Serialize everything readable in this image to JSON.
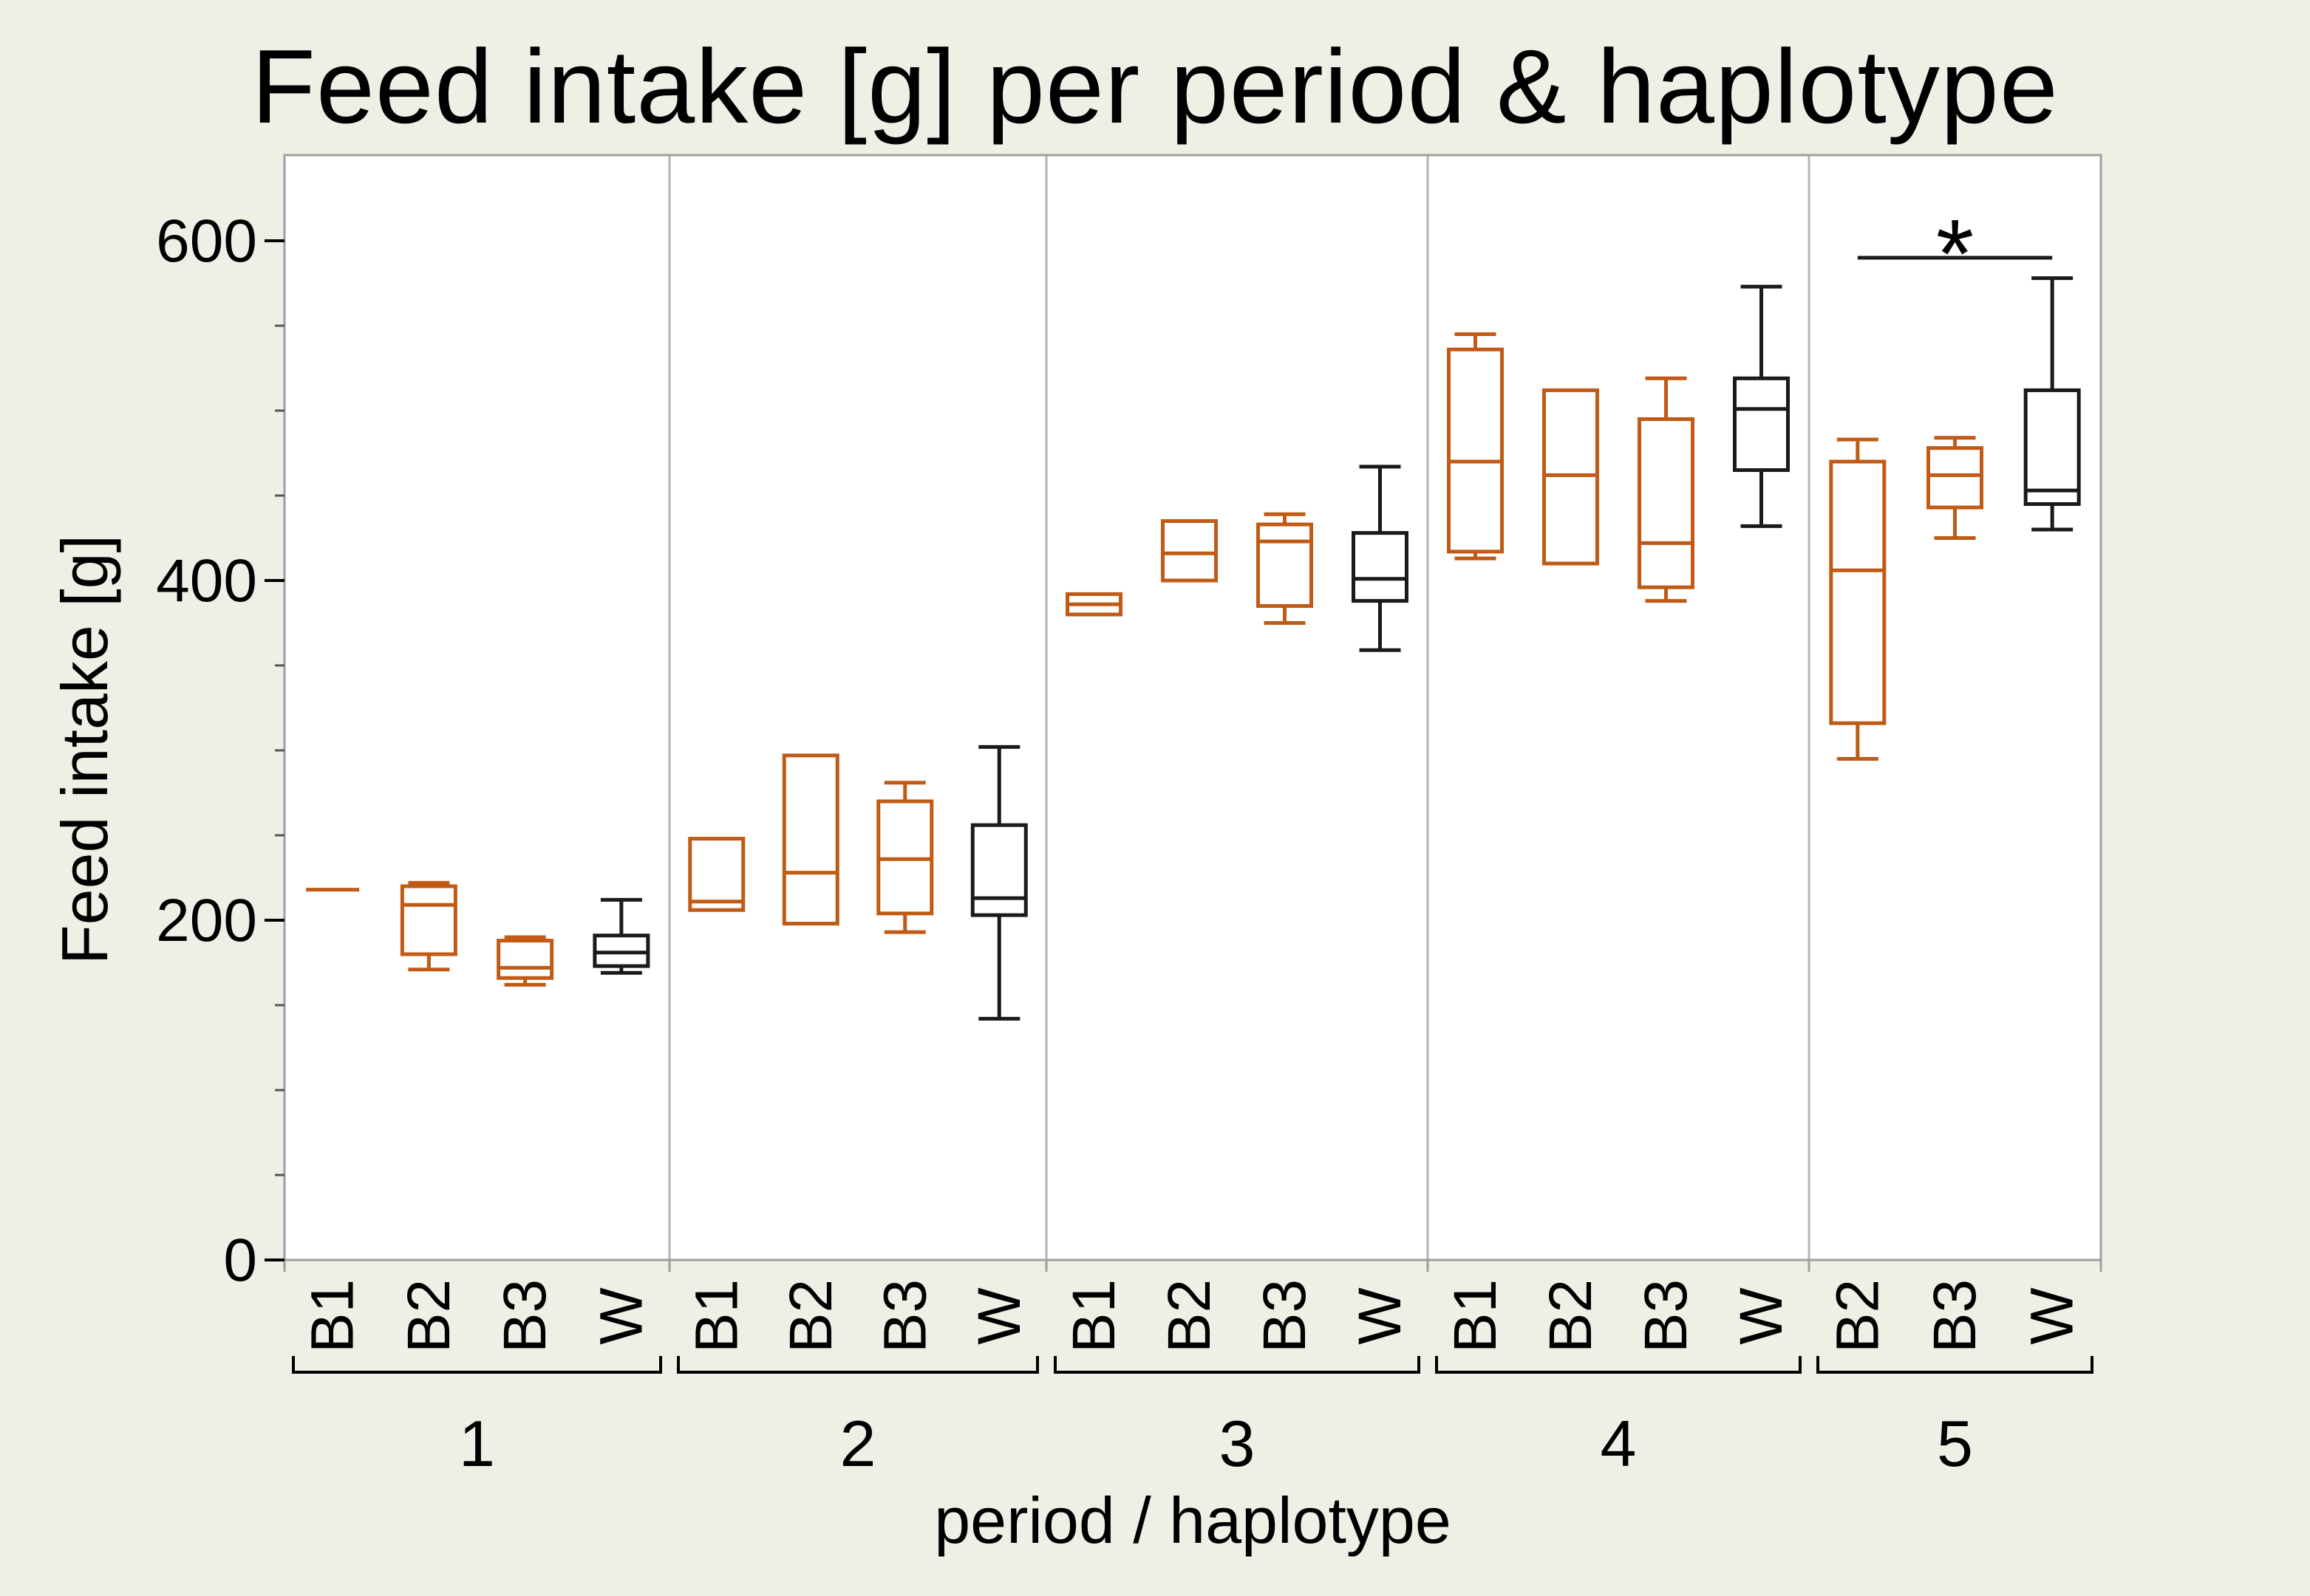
{
  "title": "Feed intake [g] per period & haplotype",
  "x_axis_title": "period / haplotype",
  "y_axis_title": "Feed intake [g]",
  "colors": {
    "background": "#F0EFE6",
    "plot_background": "#FFFFFF",
    "plot_border": "#9E9E9E",
    "panel_separator": "#B5B5B5",
    "box_orange": "#C05A15",
    "box_black": "#1A1A1A",
    "text": "#000000"
  },
  "chart_data": {
    "type": "boxplot",
    "title": "Feed intake [g] per period & haplotype",
    "xlabel": "period / haplotype",
    "ylabel": "Feed intake [g]",
    "ylim": [
      0,
      651
    ],
    "y_major_ticks": [
      0,
      200,
      400,
      600
    ],
    "y_minor_step": 50,
    "grid": false,
    "legend": "none",
    "haplotype_colors": {
      "B1": "#C05A15",
      "B2": "#C05A15",
      "B3": "#C05A15",
      "W": "#1A1A1A"
    },
    "groups": [
      {
        "period": "1",
        "boxes": [
          {
            "haplotype": "B1",
            "min": 218,
            "q1": 218,
            "median": 218,
            "q3": 218,
            "max": 218
          },
          {
            "haplotype": "B2",
            "min": 171,
            "q1": 180,
            "median": 209,
            "q3": 220,
            "max": 222
          },
          {
            "haplotype": "B3",
            "min": 162,
            "q1": 166,
            "median": 172,
            "q3": 188,
            "max": 190
          },
          {
            "haplotype": "W",
            "min": 169,
            "q1": 173,
            "median": 181,
            "q3": 191,
            "max": 212
          }
        ]
      },
      {
        "period": "2",
        "boxes": [
          {
            "haplotype": "B1",
            "min": 206,
            "q1": 206,
            "median": 211,
            "q3": 248,
            "max": 248
          },
          {
            "haplotype": "B2",
            "min": 198,
            "q1": 198,
            "median": 228,
            "q3": 297,
            "max": 297
          },
          {
            "haplotype": "B3",
            "min": 193,
            "q1": 204,
            "median": 236,
            "q3": 270,
            "max": 281
          },
          {
            "haplotype": "W",
            "min": 142,
            "q1": 203,
            "median": 213,
            "q3": 256,
            "max": 302
          }
        ]
      },
      {
        "period": "3",
        "boxes": [
          {
            "haplotype": "B1",
            "min": 380,
            "q1": 380,
            "median": 386,
            "q3": 392,
            "max": 392
          },
          {
            "haplotype": "B2",
            "min": 400,
            "q1": 400,
            "median": 416,
            "q3": 435,
            "max": 435
          },
          {
            "haplotype": "B3",
            "min": 375,
            "q1": 385,
            "median": 423,
            "q3": 433,
            "max": 439
          },
          {
            "haplotype": "W",
            "min": 359,
            "q1": 388,
            "median": 401,
            "q3": 428,
            "max": 467
          }
        ]
      },
      {
        "period": "4",
        "boxes": [
          {
            "haplotype": "B1",
            "min": 413,
            "q1": 417,
            "median": 470,
            "q3": 536,
            "max": 545
          },
          {
            "haplotype": "B2",
            "min": 410,
            "q1": 410,
            "median": 462,
            "q3": 512,
            "max": 512
          },
          {
            "haplotype": "B3",
            "min": 388,
            "q1": 396,
            "median": 422,
            "q3": 495,
            "max": 519
          },
          {
            "haplotype": "W",
            "min": 432,
            "q1": 465,
            "median": 501,
            "q3": 519,
            "max": 573
          }
        ]
      },
      {
        "period": "5",
        "boxes": [
          {
            "haplotype": "B2",
            "min": 295,
            "q1": 316,
            "median": 406,
            "q3": 470,
            "max": 483
          },
          {
            "haplotype": "B3",
            "min": 425,
            "q1": 443,
            "median": 462,
            "q3": 478,
            "max": 484
          },
          {
            "haplotype": "W",
            "min": 430,
            "q1": 445,
            "median": 453,
            "q3": 512,
            "max": 578
          }
        ]
      }
    ],
    "annotations": [
      {
        "type": "significance-bracket",
        "period": "5",
        "between": [
          "B2",
          "W"
        ],
        "label": "*",
        "y": 590
      }
    ]
  }
}
